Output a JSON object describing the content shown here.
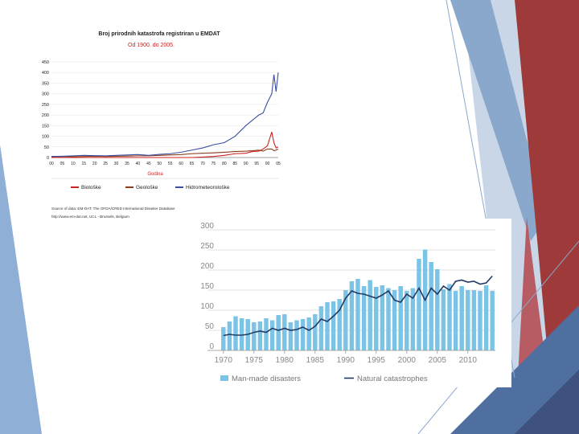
{
  "chart_data": [
    {
      "type": "line",
      "title": "Broj prirodnih katastrofa registriran u EMDAT",
      "subtitle": "Od 1900. do 2005.",
      "xlabel": "Godina",
      "ylabel": "",
      "ylim": [
        0,
        450
      ],
      "yticks": [
        0,
        50,
        100,
        150,
        200,
        250,
        300,
        350,
        400,
        450
      ],
      "x_tick_labels": [
        "00",
        "05",
        "10",
        "15",
        "20",
        "25",
        "30",
        "35",
        "40",
        "45",
        "50",
        "55",
        "60",
        "65",
        "70",
        "75",
        "80",
        "85",
        "90",
        "95",
        "00",
        "05"
      ],
      "x": [
        1900,
        1905,
        1910,
        1915,
        1920,
        1925,
        1930,
        1935,
        1940,
        1945,
        1950,
        1955,
        1960,
        1965,
        1970,
        1975,
        1980,
        1985,
        1990,
        1993,
        1996,
        1998,
        2000,
        2002,
        2003,
        2004,
        2005
      ],
      "series": [
        {
          "name": "Biološke",
          "color": "#cc2222",
          "values": [
            0,
            0,
            0,
            0,
            0,
            0,
            0,
            0,
            0,
            0,
            0,
            0,
            0,
            0,
            2,
            5,
            10,
            18,
            20,
            28,
            30,
            40,
            55,
            120,
            70,
            45,
            50
          ]
        },
        {
          "name": "Geološke",
          "color": "#8b3a1a",
          "values": [
            4,
            5,
            4,
            5,
            6,
            5,
            6,
            7,
            8,
            8,
            10,
            12,
            14,
            18,
            20,
            22,
            25,
            28,
            30,
            32,
            35,
            30,
            40,
            40,
            32,
            35,
            40
          ]
        },
        {
          "name": "Hidrometeorološke",
          "color": "#3a4fa0",
          "values": [
            5,
            6,
            8,
            10,
            9,
            8,
            10,
            12,
            14,
            10,
            15,
            18,
            25,
            35,
            45,
            60,
            70,
            100,
            150,
            175,
            200,
            210,
            260,
            300,
            390,
            310,
            400
          ]
        }
      ],
      "source": [
        "Source of data: EM-DAT: The OFDA/CRED International Disaster Database",
        "http://www.em-dat.net, UCL - Brussels, Belgium"
      ]
    },
    {
      "type": "bar",
      "title": "",
      "xlabel": "",
      "ylabel": "",
      "ylim": [
        0,
        300
      ],
      "yticks": [
        0,
        50,
        100,
        150,
        200,
        250,
        300
      ],
      "x_tick_labels": [
        "1970",
        "1975",
        "1980",
        "1985",
        "1990",
        "1995",
        "2000",
        "2005",
        "2010"
      ],
      "categories": [
        1970,
        1971,
        1972,
        1973,
        1974,
        1975,
        1976,
        1977,
        1978,
        1979,
        1980,
        1981,
        1982,
        1983,
        1984,
        1985,
        1986,
        1987,
        1988,
        1989,
        1990,
        1991,
        1992,
        1993,
        1994,
        1995,
        1996,
        1997,
        1998,
        1999,
        2000,
        2001,
        2002,
        2003,
        2004,
        2005,
        2006,
        2007,
        2008,
        2009,
        2010,
        2011,
        2012,
        2013,
        2014
      ],
      "series": [
        {
          "name": "Man-made disasters",
          "type": "bar",
          "color": "#7cc4e6",
          "values": [
            58,
            72,
            85,
            80,
            78,
            70,
            72,
            80,
            75,
            88,
            90,
            70,
            75,
            78,
            82,
            90,
            110,
            120,
            122,
            128,
            150,
            172,
            178,
            160,
            175,
            158,
            162,
            155,
            150,
            160,
            148,
            155,
            228,
            251,
            220,
            202,
            152,
            165,
            148,
            160,
            150,
            150,
            148,
            162,
            148
          ]
        },
        {
          "name": "Natural catastrophes",
          "type": "line",
          "color": "#243a63",
          "values": [
            37,
            40,
            38,
            38,
            40,
            45,
            48,
            45,
            55,
            50,
            55,
            50,
            52,
            58,
            50,
            60,
            78,
            72,
            85,
            100,
            130,
            148,
            142,
            140,
            135,
            130,
            138,
            148,
            125,
            120,
            140,
            130,
            155,
            125,
            155,
            140,
            160,
            150,
            172,
            175,
            170,
            172,
            165,
            168,
            185
          ]
        }
      ]
    }
  ]
}
